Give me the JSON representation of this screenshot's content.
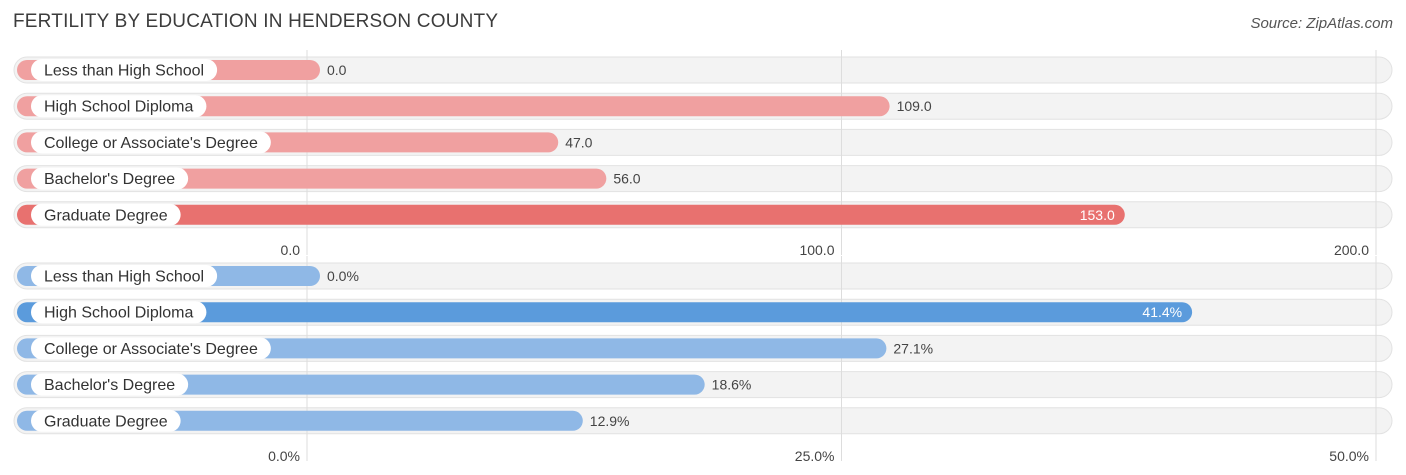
{
  "header": {
    "title": "FERTILITY BY EDUCATION IN HENDERSON COUNTY",
    "source": "Source: ZipAtlas.com"
  },
  "chart_data": [
    {
      "type": "bar",
      "orientation": "horizontal",
      "categories": [
        "Less than High School",
        "High School Diploma",
        "College or Associate's Degree",
        "Bachelor's Degree",
        "Graduate Degree"
      ],
      "values": [
        0.0,
        109.0,
        47.0,
        56.0,
        153.0
      ],
      "value_labels": [
        "0.0",
        "109.0",
        "47.0",
        "56.0",
        "153.0"
      ],
      "xlim": [
        0,
        200
      ],
      "ticks": [
        0,
        100,
        200
      ],
      "tick_labels": [
        "0.0",
        "100.0",
        "200.0"
      ],
      "grid": true,
      "colors": {
        "bar": "#f0a0a0",
        "bar_highlight": "#e8716f"
      }
    },
    {
      "type": "bar",
      "orientation": "horizontal",
      "categories": [
        "Less than High School",
        "High School Diploma",
        "College or Associate's Degree",
        "Bachelor's Degree",
        "Graduate Degree"
      ],
      "values": [
        0.0,
        41.4,
        27.1,
        18.6,
        12.9
      ],
      "value_labels": [
        "0.0%",
        "41.4%",
        "27.1%",
        "18.6%",
        "12.9%"
      ],
      "xlim": [
        0,
        50
      ],
      "ticks": [
        0,
        25,
        50
      ],
      "tick_labels": [
        "0.0%",
        "25.0%",
        "50.0%"
      ],
      "grid": true,
      "colors": {
        "bar": "#8fb8e6",
        "bar_highlight": "#5b9bdc"
      }
    }
  ]
}
